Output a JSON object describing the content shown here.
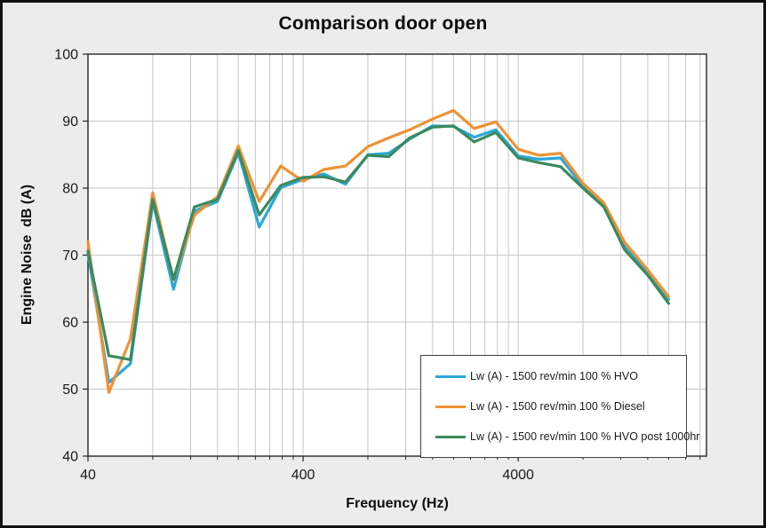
{
  "figure": {
    "title": "Comparison door open",
    "x_axis_title": "Frequency (Hz)",
    "y_axis_title": "Engine Noise  dB (A)"
  },
  "legend": {
    "entries": [
      {
        "label": "Lw (A) - 1500 rev/min 100 % HVO"
      },
      {
        "label": "Lw (A) - 1500 rev/min 100 % Diesel"
      },
      {
        "label": "Lw (A) - 1500 rev/min 100 % HVO post 1000hr"
      }
    ]
  },
  "colors": {
    "hvo_blue": "#2BA7DB",
    "diesel_orange": "#EF9134",
    "hvo_post_green": "#3B8A5F",
    "background": "#ECECEC",
    "plot_background": "#FFFFFF",
    "gridline": "#C6C6C6",
    "axis_line": "#262626",
    "outer_border": "#111111"
  },
  "chart_data": {
    "type": "line",
    "title": "Comparison door open",
    "xlabel": "Frequency (Hz)",
    "ylabel": "Engine Noise  dB (A)",
    "x_scale": "log",
    "xlim": [
      40,
      30000
    ],
    "ylim": [
      40,
      100
    ],
    "y_tick_step": 10,
    "x_tick_labels": [
      "40",
      "400",
      "4000"
    ],
    "x_major_ticks": [
      40,
      400,
      4000
    ],
    "grid": true,
    "legend_position": "inside-lower-right",
    "categories": [
      40,
      50,
      63,
      80,
      100,
      125,
      160,
      200,
      250,
      315,
      400,
      500,
      630,
      800,
      1000,
      1250,
      1600,
      2000,
      2500,
      3150,
      4000,
      5000,
      6300,
      8000,
      10000,
      12500,
      16000,
      20000
    ],
    "series": [
      {
        "name": "Lw (A) - 1500 rev/min 100 % HVO",
        "color": "#2BA7DB",
        "values": [
          70.3,
          51.0,
          53.8,
          78.0,
          64.9,
          76.6,
          78.0,
          85.3,
          74.2,
          80.1,
          81.3,
          82.1,
          80.6,
          85.0,
          85.2,
          87.3,
          89.3,
          89.2,
          87.6,
          88.7,
          84.8,
          84.3,
          84.5,
          80.3,
          77.5,
          71.2,
          67.4,
          63.4
        ]
      },
      {
        "name": "Lw (A) - 1500 rev/min 100 % Diesel",
        "color": "#EF9134",
        "values": [
          72.0,
          49.5,
          57.5,
          79.3,
          66.3,
          76.0,
          78.7,
          86.3,
          78.0,
          83.3,
          81.0,
          82.8,
          83.3,
          86.2,
          87.5,
          88.7,
          90.3,
          91.6,
          88.9,
          89.9,
          85.8,
          84.9,
          85.2,
          80.7,
          77.8,
          71.9,
          67.8,
          63.8
        ]
      },
      {
        "name": "Lw (A) - 1500 rev/min 100 % HVO post 1000hr",
        "color": "#3B8A5F",
        "values": [
          70.6,
          55.0,
          54.4,
          78.3,
          66.4,
          77.2,
          78.3,
          85.6,
          76.0,
          80.4,
          81.6,
          81.7,
          80.9,
          84.9,
          84.7,
          87.5,
          89.1,
          89.3,
          86.9,
          88.3,
          84.5,
          83.8,
          83.2,
          80.0,
          77.2,
          70.8,
          67.0,
          62.8
        ]
      }
    ]
  }
}
